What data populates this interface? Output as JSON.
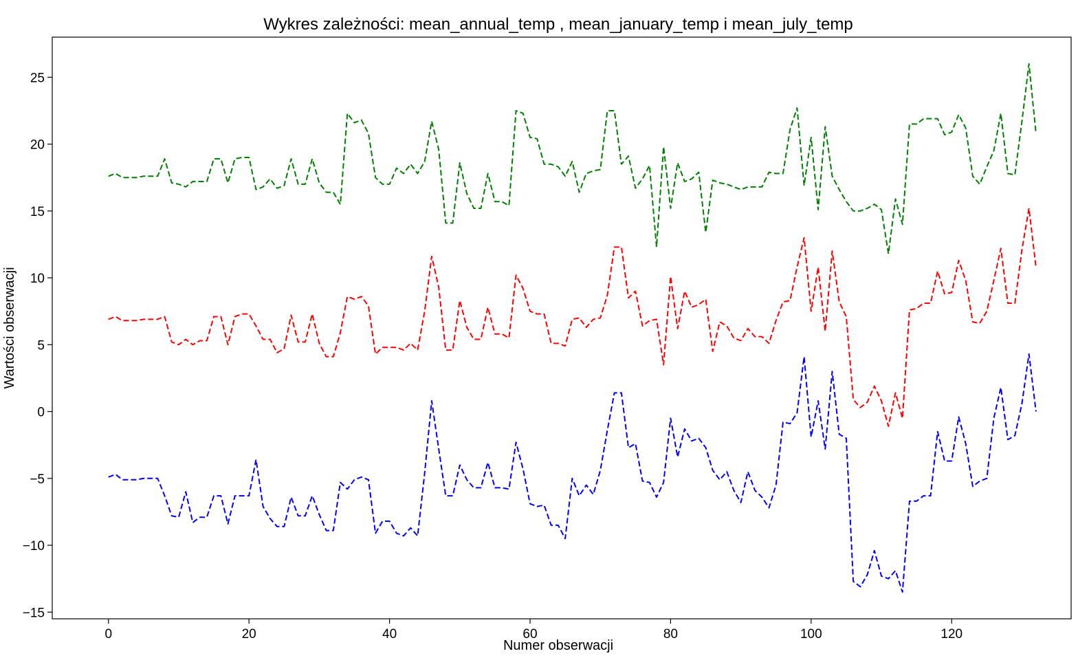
{
  "chart_data": {
    "type": "line",
    "title": "Wykres zależności: mean_annual_temp , mean_january_temp i mean_july_temp",
    "xlabel": "Numer obserwacji",
    "ylabel": "Wartości obserwacji",
    "xlim": [
      -8,
      137
    ],
    "ylim": [
      -15.5,
      28.0
    ],
    "xticks": [
      0,
      20,
      40,
      60,
      80,
      100,
      120
    ],
    "yticks": [
      -15,
      -10,
      -5,
      0,
      5,
      10,
      15,
      20,
      25
    ],
    "grid": false,
    "legend": false,
    "series": [
      {
        "color": "#008000",
        "values": [
          17.6,
          17.8,
          17.5,
          17.5,
          17.5,
          17.6,
          17.6,
          17.6,
          18.9,
          17.1,
          17.0,
          16.8,
          17.2,
          17.2,
          17.2,
          18.9,
          18.9,
          17.1,
          18.9,
          19.0,
          19.0,
          16.6,
          16.8,
          17.4,
          16.7,
          16.9,
          18.9,
          17.0,
          17.0,
          18.9,
          17.1,
          16.4,
          16.4,
          15.5,
          22.3,
          21.6,
          21.8,
          20.8,
          17.5,
          17.0,
          17.0,
          18.2,
          17.8,
          18.5,
          17.8,
          18.7,
          21.7,
          19.6,
          14.1,
          14.1,
          18.6,
          16.3,
          15.2,
          15.2,
          17.8,
          15.7,
          15.7,
          15.4,
          22.5,
          22.3,
          20.5,
          20.4,
          18.5,
          18.5,
          18.3,
          17.6,
          18.7,
          16.4,
          17.8,
          18.0,
          18.1,
          22.5,
          22.5,
          18.5,
          19.1,
          16.7,
          17.4,
          18.4,
          12.3,
          19.8,
          15.2,
          18.6,
          17.2,
          17.4,
          17.9,
          13.4,
          17.3,
          17.1,
          17.0,
          16.8,
          16.6,
          16.8,
          16.8,
          16.8,
          17.9,
          17.8,
          17.8,
          21.1,
          22.7,
          16.9,
          20.5,
          15.1,
          21.3,
          17.6,
          16.6,
          15.7,
          15.0,
          15.0,
          15.2,
          15.5,
          15.1,
          11.8,
          15.9,
          14.0,
          21.5,
          21.5,
          21.9,
          21.9,
          21.9,
          20.7,
          20.9,
          22.2,
          21.2,
          17.6,
          17.0,
          18.3,
          19.5,
          22.3,
          17.8,
          17.7,
          21.7,
          26.0,
          20.8
        ]
      },
      {
        "color": "#ff0000",
        "values": [
          6.9,
          7.1,
          6.8,
          6.8,
          6.8,
          6.9,
          6.9,
          6.9,
          7.1,
          5.2,
          5.0,
          5.4,
          5.0,
          5.3,
          5.3,
          7.1,
          7.1,
          5.0,
          7.1,
          7.3,
          7.3,
          6.4,
          5.4,
          5.4,
          4.4,
          4.7,
          7.2,
          5.2,
          5.2,
          7.3,
          5.1,
          4.1,
          4.1,
          5.9,
          8.6,
          8.4,
          8.6,
          7.9,
          4.3,
          4.8,
          4.8,
          4.8,
          4.6,
          5.1,
          4.6,
          7.5,
          11.6,
          9.3,
          4.6,
          4.6,
          8.3,
          6.3,
          5.4,
          5.4,
          7.8,
          5.8,
          5.8,
          5.5,
          10.2,
          9.2,
          7.5,
          7.3,
          7.3,
          5.1,
          5.1,
          4.9,
          6.9,
          7.0,
          6.3,
          6.9,
          7.0,
          8.7,
          12.3,
          12.3,
          8.5,
          9.0,
          6.4,
          6.8,
          6.9,
          3.5,
          10.1,
          6.2,
          9.0,
          7.8,
          8.0,
          8.4,
          4.5,
          6.7,
          6.4,
          5.5,
          5.3,
          6.2,
          5.6,
          5.6,
          5.1,
          6.8,
          8.2,
          8.3,
          10.8,
          13.0,
          7.5,
          10.8,
          6.0,
          12.0,
          8.2,
          7.1,
          0.9,
          0.3,
          0.7,
          1.9,
          0.8,
          -1.1,
          1.4,
          -0.5,
          7.6,
          7.7,
          8.1,
          8.1,
          10.5,
          8.8,
          8.9,
          11.3,
          9.8,
          6.7,
          6.6,
          7.5,
          9.8,
          12.2,
          8.1,
          8.1,
          12.1,
          15.2,
          10.8
        ]
      },
      {
        "color": "#0000ff",
        "values": [
          -4.9,
          -4.7,
          -5.1,
          -5.1,
          -5.1,
          -5.0,
          -5.0,
          -5.0,
          -6.3,
          -7.8,
          -7.9,
          -6.0,
          -8.3,
          -7.9,
          -7.9,
          -6.3,
          -6.3,
          -8.4,
          -6.3,
          -6.3,
          -6.3,
          -3.6,
          -7.1,
          -8.0,
          -8.6,
          -8.6,
          -6.4,
          -7.8,
          -7.8,
          -6.3,
          -7.7,
          -8.9,
          -8.9,
          -5.3,
          -5.8,
          -5.1,
          -4.9,
          -5.1,
          -9.1,
          -8.2,
          -8.2,
          -9.1,
          -9.3,
          -8.7,
          -9.3,
          -4.6,
          0.8,
          -2.8,
          -6.3,
          -6.3,
          -4.0,
          -5.1,
          -5.7,
          -5.7,
          -3.8,
          -5.7,
          -5.7,
          -5.8,
          -2.3,
          -4.3,
          -6.9,
          -7.1,
          -7.0,
          -8.5,
          -8.5,
          -9.5,
          -5.0,
          -6.3,
          -5.5,
          -6.2,
          -4.4,
          -1.4,
          1.4,
          1.4,
          -2.7,
          -2.4,
          -5.2,
          -5.3,
          -6.4,
          -5.3,
          -0.5,
          -3.4,
          -1.3,
          -2.2,
          -2.0,
          -2.7,
          -4.4,
          -5.1,
          -4.5,
          -5.9,
          -6.8,
          -4.5,
          -5.9,
          -6.4,
          -7.2,
          -5.5,
          -0.8,
          -0.9,
          -0.1,
          4.1,
          -1.9,
          0.8,
          -2.8,
          3.0,
          -1.7,
          -2.0,
          -12.7,
          -13.1,
          -12.2,
          -10.4,
          -12.3,
          -12.5,
          -11.9,
          -13.5,
          -6.7,
          -6.7,
          -6.3,
          -6.3,
          -1.5,
          -3.7,
          -3.7,
          -0.4,
          -2.4,
          -5.6,
          -5.2,
          -5.0,
          -0.5,
          1.8,
          -2.1,
          -1.8,
          0.6,
          4.3,
          0.0
        ]
      }
    ]
  }
}
